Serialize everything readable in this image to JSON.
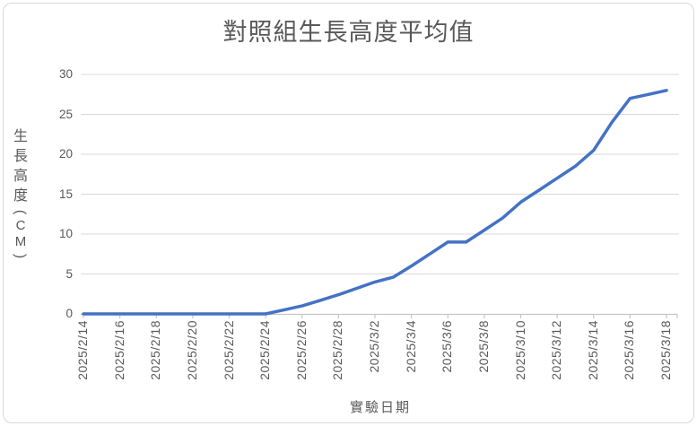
{
  "chart_data": {
    "type": "line",
    "title": "對照組生長高度平均值",
    "xlabel": "實驗日期",
    "ylabel": "生長高度(CM)",
    "categories": [
      "2025/2/14",
      "2025/2/15",
      "2025/2/16",
      "2025/2/17",
      "2025/2/18",
      "2025/2/19",
      "2025/2/20",
      "2025/2/21",
      "2025/2/22",
      "2025/2/23",
      "2025/2/24",
      "2025/2/25",
      "2025/2/26",
      "2025/2/27",
      "2025/2/28",
      "2025/3/1",
      "2025/3/2",
      "2025/3/3",
      "2025/3/4",
      "2025/3/5",
      "2025/3/6",
      "2025/3/7",
      "2025/3/8",
      "2025/3/9",
      "2025/3/10",
      "2025/3/11",
      "2025/3/12",
      "2025/3/13",
      "2025/3/14",
      "2025/3/15",
      "2025/3/16",
      "2025/3/17",
      "2025/3/18"
    ],
    "values": [
      0,
      0,
      0,
      0,
      0,
      0,
      0,
      0,
      0,
      0,
      0,
      0.5,
      1,
      1.7,
      2.4,
      3.2,
      4,
      4.6,
      6,
      7.5,
      9,
      9,
      10.5,
      12,
      14,
      15.5,
      17,
      18.5,
      20.5,
      24,
      27,
      27.5,
      28
    ],
    "x_tick_labels": [
      "2025/2/14",
      "2025/2/16",
      "2025/2/18",
      "2025/2/20",
      "2025/2/22",
      "2025/2/24",
      "2025/2/26",
      "2025/2/28",
      "2025/3/2",
      "2025/3/4",
      "2025/3/6",
      "2025/3/8",
      "2025/3/10",
      "2025/3/12",
      "2025/3/14",
      "2025/3/16",
      "2025/3/18"
    ],
    "x_label_every_n_categories": 2,
    "y_ticks": [
      0,
      5,
      10,
      15,
      20,
      25,
      30
    ],
    "ylim": [
      0,
      30
    ],
    "grid": "horizontal",
    "legend": "none",
    "colors": {
      "series_line": "#4472C4",
      "gridline": "#D9D9D9",
      "axis_line": "#C6C6C6",
      "text": "#595959",
      "chart_border": "#D9D9D9",
      "background": "#FFFFFF"
    }
  }
}
